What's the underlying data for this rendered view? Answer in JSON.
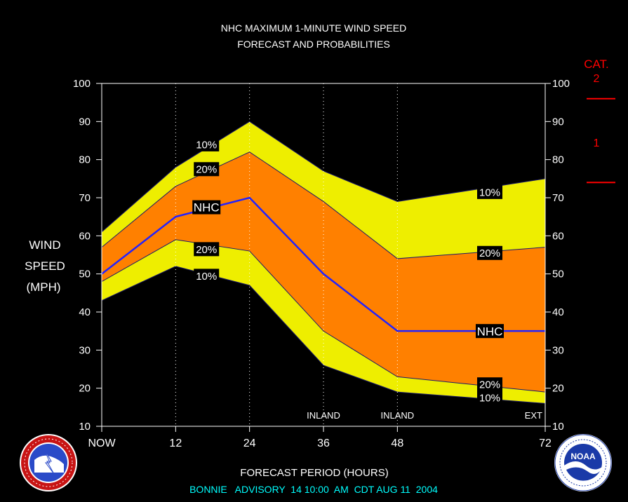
{
  "header": {
    "title_line1": "NHC MAXIMUM 1-MINUTE WIND SPEED",
    "title_line2": "FORECAST AND PROBABILITIES"
  },
  "axes": {
    "ylabel_lines": [
      "WIND",
      "SPEED",
      "(MPH)"
    ],
    "xlabel": "FORECAST PERIOD (HOURS)",
    "x_ticks": [
      {
        "x": 0,
        "label": "NOW"
      },
      {
        "x": 12,
        "label": "12"
      },
      {
        "x": 24,
        "label": "24"
      },
      {
        "x": 36,
        "label": "36"
      },
      {
        "x": 48,
        "label": "48"
      },
      {
        "x": 72,
        "label": "72"
      }
    ],
    "y_ticks": [
      10,
      20,
      30,
      40,
      50,
      60,
      70,
      80,
      90,
      100
    ],
    "period_labels": [
      {
        "x": 36,
        "label": "INLAND"
      },
      {
        "x": 48,
        "label": "INLAND"
      },
      {
        "x": 72,
        "label": "EXT"
      }
    ]
  },
  "category_scale": {
    "title": "CAT.",
    "labels": [
      {
        "label": "2",
        "y": 101.5
      },
      {
        "label": "1",
        "y": 84.5
      }
    ],
    "thresholds": [
      96,
      74
    ]
  },
  "footer": {
    "advisory": "BONNIE   ADVISORY  14 10:00  AM  CDT AUG 11  2004"
  },
  "logos": {
    "nws_icon": "nws-seal-icon",
    "noaa_icon": "noaa-seal-icon",
    "noaa_text": "NOAA"
  },
  "colors": {
    "background": "#000000",
    "band_10": "#eeee00",
    "band_20": "#ff8000",
    "nhc_line": "#2222ff",
    "text": "#ffffff",
    "category": "#ff0000",
    "footer": "#00ffff"
  },
  "chart_data": {
    "type": "area",
    "title": "NHC MAXIMUM 1-MINUTE WIND SPEED FORECAST AND PROBABILITIES",
    "xlabel": "FORECAST PERIOD (HOURS)",
    "ylabel": "WIND SPEED (MPH)",
    "xlim": [
      0,
      72
    ],
    "ylim": [
      10,
      100
    ],
    "grid": "vertical dotted at 12, 24, 36, 48",
    "x": [
      0,
      12,
      24,
      36,
      48,
      72
    ],
    "series": [
      {
        "name": "10%",
        "role": "upper",
        "values": [
          61,
          78,
          90,
          77,
          69,
          75
        ]
      },
      {
        "name": "20%",
        "role": "upper",
        "values": [
          57,
          73,
          82,
          69,
          54,
          57
        ]
      },
      {
        "name": "NHC",
        "values": [
          50,
          65,
          70,
          50,
          35,
          35
        ]
      },
      {
        "name": "20%",
        "role": "lower",
        "values": [
          48,
          59,
          56,
          35,
          23,
          19
        ]
      },
      {
        "name": "10%",
        "role": "lower",
        "values": [
          43,
          52,
          47,
          26,
          19,
          16
        ]
      }
    ],
    "band_labels": [
      {
        "text": "10%",
        "x": 17,
        "y": 84
      },
      {
        "text": "20%",
        "x": 17,
        "y": 77.5
      },
      {
        "text": "NHC",
        "x": 17,
        "y": 67.5
      },
      {
        "text": "20%",
        "x": 17,
        "y": 56.5
      },
      {
        "text": "10%",
        "x": 17,
        "y": 49.5
      },
      {
        "text": "10%",
        "x": 63,
        "y": 71.5
      },
      {
        "text": "20%",
        "x": 63,
        "y": 55.5
      },
      {
        "text": "NHC",
        "x": 63,
        "y": 35
      },
      {
        "text": "20%",
        "x": 63,
        "y": 21
      },
      {
        "text": "10%",
        "x": 63,
        "y": 17.5
      }
    ]
  }
}
